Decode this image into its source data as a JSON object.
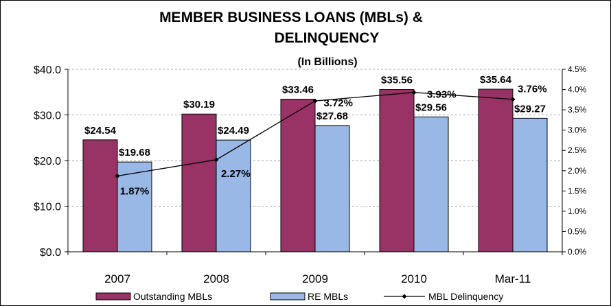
{
  "chart_data": {
    "type": "bar",
    "title_lines": [
      "MEMBER BUSINESS LOANS (MBLs) &",
      "DELINQUENCY"
    ],
    "subtitle": "(In Billions)",
    "categories": [
      "2007",
      "2008",
      "2009",
      "2010",
      "Mar-11"
    ],
    "series": [
      {
        "name": "Outstanding MBLs",
        "type": "bar",
        "axis": "left",
        "color": "#993366",
        "values": [
          24.54,
          30.19,
          33.46,
          35.56,
          35.64
        ],
        "labels": [
          "$24.54",
          "$30.19",
          "$33.46",
          "$35.56",
          "$35.64"
        ]
      },
      {
        "name": "RE MBLs",
        "type": "bar",
        "axis": "left",
        "color": "#99B8E6",
        "values": [
          19.68,
          24.49,
          27.68,
          29.56,
          29.27
        ],
        "labels": [
          "$19.68",
          "$24.49",
          "$27.68",
          "$29.56",
          "$29.27"
        ]
      },
      {
        "name": "MBL Delinquency",
        "type": "line",
        "axis": "right",
        "color": "#000000",
        "values": [
          1.87,
          2.27,
          3.72,
          3.93,
          3.76
        ],
        "labels": [
          "1.87%",
          "2.27%",
          "3.72%",
          "3.93%",
          "3.76%"
        ]
      }
    ],
    "y_left": {
      "min": 0,
      "max": 40,
      "ticks": [
        0,
        10,
        20,
        30,
        40
      ],
      "tick_labels": [
        "$0.0",
        "$10.0",
        "$20.0",
        "$30.0",
        "$40.0"
      ]
    },
    "y_right": {
      "min": 0,
      "max": 4.5,
      "ticks": [
        0,
        0.5,
        1.0,
        1.5,
        2.0,
        2.5,
        3.0,
        3.5,
        4.0,
        4.5
      ],
      "tick_labels": [
        "0.0%",
        "0.5%",
        "1.0%",
        "1.5%",
        "2.0%",
        "2.5%",
        "3.0%",
        "3.5%",
        "4.0%",
        "4.5%"
      ]
    },
    "grid": true,
    "legend": "bottom"
  }
}
